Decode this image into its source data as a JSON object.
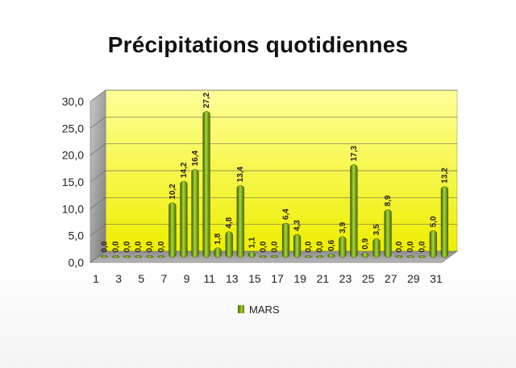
{
  "chart_data": {
    "type": "bar",
    "title": "Précipitations quotidiennes",
    "xlabel": "",
    "ylabel": "",
    "ylim": [
      0,
      30
    ],
    "yticks": [
      "0,0",
      "5,0",
      "10,0",
      "15,0",
      "20,0",
      "25,0",
      "30,0"
    ],
    "xticks": [
      "1",
      "3",
      "5",
      "7",
      "9",
      "11",
      "13",
      "15",
      "17",
      "19",
      "21",
      "23",
      "25",
      "27",
      "29",
      "31"
    ],
    "categories": [
      1,
      2,
      3,
      4,
      5,
      6,
      7,
      8,
      9,
      10,
      11,
      12,
      13,
      14,
      15,
      16,
      17,
      18,
      19,
      20,
      21,
      22,
      23,
      24,
      25,
      26,
      27,
      28,
      29,
      30,
      31
    ],
    "series": [
      {
        "name": "MARS",
        "values": [
          0.0,
          0.0,
          0.0,
          0.0,
          0.0,
          0.0,
          10.2,
          14.2,
          16.4,
          27.2,
          1.8,
          4.8,
          13.4,
          1.1,
          0.0,
          0.0,
          6.4,
          4.3,
          0.0,
          0.0,
          0.6,
          3.9,
          17.3,
          0.9,
          3.5,
          8.9,
          0.0,
          0.0,
          0.0,
          5.0,
          13.2
        ],
        "labels": [
          "0,0",
          "0,0",
          "0,0",
          "0,0",
          "0,0",
          "0,0",
          "10,2",
          "14,2",
          "16,4",
          "27,2",
          "1,8",
          "4,8",
          "13,4",
          "1,1",
          "0,0",
          "0,0",
          "6,4",
          "4,3",
          "0,0",
          "0,0",
          "0,6",
          "3,9",
          "17,3",
          "0,9",
          "3,5",
          "8,9",
          "0,0",
          "0,0",
          "0,0",
          "5,0",
          "13,2"
        ]
      }
    ],
    "legend_position": "bottom",
    "grid": true,
    "colors": {
      "bar": "#8cbf26",
      "bar_dark": "#4c6b00",
      "wall_top": "#ffff9a",
      "wall_bottom": "#eeee00",
      "floor": "#a8a8a8"
    }
  }
}
